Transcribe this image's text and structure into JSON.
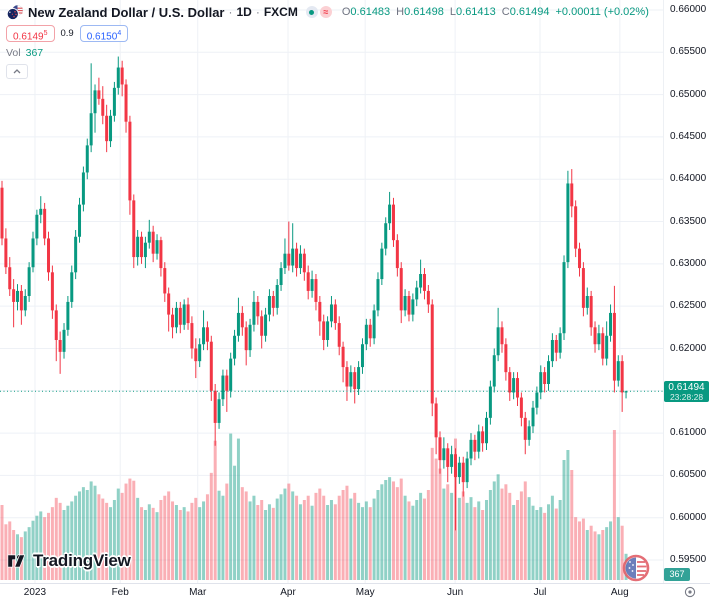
{
  "header": {
    "symbol_title": "New Zealand Dollar / U.S. Dollar",
    "separator": "·",
    "interval": "1D",
    "exchange": "FXCM",
    "ohlc": {
      "open_label": "O",
      "open": "0.61483",
      "high_label": "H",
      "high": "0.61498",
      "low_label": "L",
      "low": "0.61413",
      "close_label": "C",
      "close": "0.61494",
      "change": "+0.00011 (+0.02%)"
    },
    "sell": {
      "main": "0.6149",
      "sup": "5"
    },
    "spread": "0.9",
    "buy": {
      "main": "0.6150",
      "sup": "4"
    },
    "indicator": {
      "label": "Vol",
      "value": "367"
    }
  },
  "icons": {
    "delayed_glyph": "≈"
  },
  "watermark": {
    "brand": "TradingView"
  },
  "price_axis": {
    "current": {
      "price": "0.61494",
      "countdown": "23:28:28"
    },
    "volume_label": "367"
  },
  "chart_data": {
    "type": "candlestick",
    "symbol": "NZDUSD",
    "timeframe": "1D",
    "title": "New Zealand Dollar / U.S. Dollar · 1D · FXCM",
    "last_price": 0.61494,
    "y_axis": {
      "tick_step": 0.005,
      "ylim": [
        0.5925,
        0.6612
      ],
      "tick_labels": [
        "0.66000",
        "0.65500",
        "0.65000",
        "0.64500",
        "0.64000",
        "0.63500",
        "0.63000",
        "0.62500",
        "0.62000",
        "0.61000",
        "0.60500",
        "0.60000",
        "0.59500"
      ]
    },
    "x_axis": {
      "unit": "trading-day",
      "month_ticks": [
        {
          "label": "2023",
          "index": 8.5
        },
        {
          "label": "Feb",
          "index": 30.5
        },
        {
          "label": "Mar",
          "index": 50.5
        },
        {
          "label": "Apr",
          "index": 73.8
        },
        {
          "label": "May",
          "index": 93.7
        },
        {
          "label": "Jun",
          "index": 116.9
        },
        {
          "label": "Jul",
          "index": 138.8
        },
        {
          "label": "Aug",
          "index": 159.4
        }
      ]
    },
    "colors": {
      "up": "#089981",
      "down": "#f23645",
      "volume_up": "rgba(8,153,129,0.45)",
      "volume_down": "rgba(242,54,69,0.40)",
      "grid": "#eef1f6",
      "last_price_line": "#089981"
    },
    "candles": [
      [
        0.639,
        0.6398,
        0.6322,
        0.633
      ],
      [
        0.633,
        0.6342,
        0.6288,
        0.6296
      ],
      [
        0.6296,
        0.6308,
        0.6262,
        0.627
      ],
      [
        0.627,
        0.6282,
        0.6225,
        0.6255
      ],
      [
        0.6255,
        0.6276,
        0.6245,
        0.6268
      ],
      [
        0.6268,
        0.6275,
        0.6228,
        0.6245
      ],
      [
        0.6245,
        0.627,
        0.6238,
        0.6262
      ],
      [
        0.6262,
        0.6302,
        0.6255,
        0.6296
      ],
      [
        0.6296,
        0.6338,
        0.629,
        0.633
      ],
      [
        0.633,
        0.6364,
        0.6322,
        0.6358
      ],
      [
        0.6358,
        0.638,
        0.6348,
        0.6365
      ],
      [
        0.6365,
        0.6372,
        0.6322,
        0.633
      ],
      [
        0.633,
        0.6338,
        0.628,
        0.629
      ],
      [
        0.629,
        0.6298,
        0.6235,
        0.6245
      ],
      [
        0.6245,
        0.6252,
        0.6185,
        0.621
      ],
      [
        0.621,
        0.622,
        0.617,
        0.6196
      ],
      [
        0.6196,
        0.623,
        0.6188,
        0.6222
      ],
      [
        0.6222,
        0.6262,
        0.6215,
        0.6255
      ],
      [
        0.6255,
        0.6298,
        0.6248,
        0.629
      ],
      [
        0.629,
        0.634,
        0.6282,
        0.6332
      ],
      [
        0.6332,
        0.6378,
        0.6325,
        0.637
      ],
      [
        0.637,
        0.6415,
        0.6362,
        0.6408
      ],
      [
        0.6408,
        0.6448,
        0.64,
        0.644
      ],
      [
        0.644,
        0.6537,
        0.6432,
        0.6478
      ],
      [
        0.6478,
        0.6512,
        0.6455,
        0.6505
      ],
      [
        0.6505,
        0.652,
        0.6488,
        0.6495
      ],
      [
        0.6495,
        0.651,
        0.6465,
        0.6475
      ],
      [
        0.6475,
        0.6488,
        0.6432,
        0.6445
      ],
      [
        0.6445,
        0.6482,
        0.6438,
        0.6475
      ],
      [
        0.6475,
        0.6515,
        0.6468,
        0.6508
      ],
      [
        0.6508,
        0.6545,
        0.65,
        0.6532
      ],
      [
        0.6532,
        0.654,
        0.6498,
        0.6512
      ],
      [
        0.6512,
        0.6518,
        0.6455,
        0.6468
      ],
      [
        0.6468,
        0.6475,
        0.6358,
        0.6375
      ],
      [
        0.6375,
        0.6382,
        0.6295,
        0.6308
      ],
      [
        0.6308,
        0.634,
        0.6298,
        0.6332
      ],
      [
        0.6332,
        0.6338,
        0.63,
        0.6308
      ],
      [
        0.6308,
        0.6332,
        0.6295,
        0.6325
      ],
      [
        0.6325,
        0.6352,
        0.6318,
        0.6338
      ],
      [
        0.6338,
        0.6345,
        0.6302,
        0.6312
      ],
      [
        0.6312,
        0.6335,
        0.6305,
        0.6328
      ],
      [
        0.6328,
        0.6332,
        0.6285,
        0.6295
      ],
      [
        0.6295,
        0.6302,
        0.6255,
        0.6265
      ],
      [
        0.6265,
        0.6272,
        0.622,
        0.624
      ],
      [
        0.624,
        0.6248,
        0.6212,
        0.6225
      ],
      [
        0.6225,
        0.6255,
        0.6218,
        0.6248
      ],
      [
        0.6248,
        0.6255,
        0.6218,
        0.6228
      ],
      [
        0.6228,
        0.6258,
        0.6222,
        0.6252
      ],
      [
        0.6252,
        0.626,
        0.6222,
        0.623
      ],
      [
        0.623,
        0.6238,
        0.6188,
        0.62
      ],
      [
        0.62,
        0.6212,
        0.6165,
        0.6185
      ],
      [
        0.6185,
        0.6212,
        0.6178,
        0.6205
      ],
      [
        0.6205,
        0.6245,
        0.6198,
        0.6225
      ],
      [
        0.6225,
        0.6232,
        0.6198,
        0.6208
      ],
      [
        0.6208,
        0.6215,
        0.6138,
        0.615
      ],
      [
        0.615,
        0.6158,
        0.6085,
        0.6112
      ],
      [
        0.6112,
        0.6148,
        0.6105,
        0.614
      ],
      [
        0.614,
        0.6175,
        0.6132,
        0.6168
      ],
      [
        0.6168,
        0.6175,
        0.6125,
        0.615
      ],
      [
        0.615,
        0.6195,
        0.6142,
        0.6188
      ],
      [
        0.6188,
        0.6222,
        0.618,
        0.6215
      ],
      [
        0.6215,
        0.626,
        0.6208,
        0.6242
      ],
      [
        0.6242,
        0.625,
        0.6215,
        0.6225
      ],
      [
        0.6225,
        0.6232,
        0.618,
        0.6198
      ],
      [
        0.6198,
        0.6235,
        0.619,
        0.6228
      ],
      [
        0.6228,
        0.6268,
        0.622,
        0.6255
      ],
      [
        0.6255,
        0.6262,
        0.6228,
        0.6238
      ],
      [
        0.6238,
        0.6245,
        0.62,
        0.6215
      ],
      [
        0.6215,
        0.6248,
        0.6208,
        0.624
      ],
      [
        0.624,
        0.627,
        0.6232,
        0.6262
      ],
      [
        0.6262,
        0.6268,
        0.6238,
        0.6248
      ],
      [
        0.6248,
        0.6282,
        0.624,
        0.6275
      ],
      [
        0.6275,
        0.6302,
        0.6268,
        0.6295
      ],
      [
        0.6295,
        0.633,
        0.6288,
        0.6312
      ],
      [
        0.6312,
        0.635,
        0.6292,
        0.6298
      ],
      [
        0.6298,
        0.6348,
        0.629,
        0.6318
      ],
      [
        0.6318,
        0.6325,
        0.6285,
        0.6295
      ],
      [
        0.6295,
        0.6322,
        0.6288,
        0.6312
      ],
      [
        0.6312,
        0.6318,
        0.628,
        0.629
      ],
      [
        0.629,
        0.6298,
        0.6258,
        0.6268
      ],
      [
        0.6268,
        0.6292,
        0.626,
        0.6282
      ],
      [
        0.6282,
        0.6288,
        0.6245,
        0.6255
      ],
      [
        0.6255,
        0.6262,
        0.6215,
        0.6232
      ],
      [
        0.6232,
        0.624,
        0.6198,
        0.621
      ],
      [
        0.621,
        0.6238,
        0.6202,
        0.6232
      ],
      [
        0.6232,
        0.6262,
        0.6225,
        0.6252
      ],
      [
        0.6252,
        0.6258,
        0.6222,
        0.623
      ],
      [
        0.623,
        0.6238,
        0.6192,
        0.6202
      ],
      [
        0.6202,
        0.6208,
        0.616,
        0.6178
      ],
      [
        0.6178,
        0.6185,
        0.6138,
        0.6155
      ],
      [
        0.6155,
        0.618,
        0.6148,
        0.6172
      ],
      [
        0.6172,
        0.6178,
        0.6135,
        0.6152
      ],
      [
        0.6152,
        0.6185,
        0.6145,
        0.6178
      ],
      [
        0.6178,
        0.6212,
        0.617,
        0.6205
      ],
      [
        0.6205,
        0.6235,
        0.6198,
        0.6228
      ],
      [
        0.6228,
        0.6235,
        0.6202,
        0.6212
      ],
      [
        0.6212,
        0.6252,
        0.6205,
        0.6245
      ],
      [
        0.6245,
        0.629,
        0.6238,
        0.6282
      ],
      [
        0.6282,
        0.6325,
        0.6275,
        0.6318
      ],
      [
        0.6318,
        0.6355,
        0.631,
        0.6348
      ],
      [
        0.6348,
        0.6385,
        0.634,
        0.637
      ],
      [
        0.637,
        0.6378,
        0.632,
        0.6328
      ],
      [
        0.6328,
        0.6335,
        0.6285,
        0.6295
      ],
      [
        0.6295,
        0.6302,
        0.623,
        0.6245
      ],
      [
        0.6245,
        0.627,
        0.6238,
        0.6262
      ],
      [
        0.6262,
        0.6268,
        0.6232,
        0.624
      ],
      [
        0.624,
        0.6265,
        0.6232,
        0.6258
      ],
      [
        0.6258,
        0.628,
        0.625,
        0.6272
      ],
      [
        0.6272,
        0.6305,
        0.6265,
        0.6288
      ],
      [
        0.6288,
        0.6295,
        0.6258,
        0.6268
      ],
      [
        0.6268,
        0.6275,
        0.6242,
        0.6252
      ],
      [
        0.6252,
        0.6258,
        0.612,
        0.6135
      ],
      [
        0.6135,
        0.6142,
        0.6075,
        0.6095
      ],
      [
        0.6095,
        0.6102,
        0.6052,
        0.6068
      ],
      [
        0.6068,
        0.6095,
        0.6058,
        0.6082
      ],
      [
        0.6082,
        0.6088,
        0.6042,
        0.606
      ],
      [
        0.606,
        0.6085,
        0.6052,
        0.6075
      ],
      [
        0.6075,
        0.6082,
        0.5985,
        0.6048
      ],
      [
        0.6048,
        0.6072,
        0.604,
        0.6065
      ],
      [
        0.6065,
        0.6072,
        0.6025,
        0.6042
      ],
      [
        0.6042,
        0.6078,
        0.6035,
        0.607
      ],
      [
        0.607,
        0.61,
        0.6062,
        0.6092
      ],
      [
        0.6092,
        0.6098,
        0.6068,
        0.6078
      ],
      [
        0.6078,
        0.611,
        0.607,
        0.6102
      ],
      [
        0.6102,
        0.6108,
        0.6078,
        0.6088
      ],
      [
        0.6088,
        0.6125,
        0.608,
        0.6118
      ],
      [
        0.6118,
        0.6162,
        0.611,
        0.6155
      ],
      [
        0.6155,
        0.62,
        0.6148,
        0.6192
      ],
      [
        0.6192,
        0.6248,
        0.6185,
        0.6225
      ],
      [
        0.6225,
        0.6232,
        0.6195,
        0.6205
      ],
      [
        0.6205,
        0.6212,
        0.6162,
        0.6172
      ],
      [
        0.6172,
        0.6178,
        0.6138,
        0.6148
      ],
      [
        0.6148,
        0.6172,
        0.614,
        0.6165
      ],
      [
        0.6165,
        0.6172,
        0.6132,
        0.6142
      ],
      [
        0.6142,
        0.6148,
        0.6108,
        0.6118
      ],
      [
        0.6118,
        0.6125,
        0.6075,
        0.6092
      ],
      [
        0.6092,
        0.6115,
        0.6085,
        0.6108
      ],
      [
        0.6108,
        0.6138,
        0.61,
        0.613
      ],
      [
        0.613,
        0.6155,
        0.6122,
        0.6148
      ],
      [
        0.6148,
        0.618,
        0.614,
        0.6172
      ],
      [
        0.6172,
        0.6178,
        0.6148,
        0.6158
      ],
      [
        0.6158,
        0.6192,
        0.615,
        0.6185
      ],
      [
        0.6185,
        0.6218,
        0.6178,
        0.621
      ],
      [
        0.621,
        0.6216,
        0.6185,
        0.6195
      ],
      [
        0.6195,
        0.6225,
        0.6188,
        0.6218
      ],
      [
        0.6218,
        0.631,
        0.621,
        0.6302
      ],
      [
        0.6302,
        0.641,
        0.6295,
        0.6395
      ],
      [
        0.6395,
        0.6412,
        0.6355,
        0.6368
      ],
      [
        0.6368,
        0.6375,
        0.6308,
        0.6318
      ],
      [
        0.6318,
        0.6325,
        0.6285,
        0.6295
      ],
      [
        0.6295,
        0.6302,
        0.6238,
        0.6248
      ],
      [
        0.6248,
        0.6272,
        0.624,
        0.6262
      ],
      [
        0.6262,
        0.6268,
        0.6215,
        0.6225
      ],
      [
        0.6225,
        0.6232,
        0.6195,
        0.6205
      ],
      [
        0.6205,
        0.6228,
        0.6198,
        0.6218
      ],
      [
        0.6218,
        0.6225,
        0.618,
        0.6188
      ],
      [
        0.6188,
        0.6232,
        0.618,
        0.6215
      ],
      [
        0.6215,
        0.6252,
        0.6208,
        0.6242
      ],
      [
        0.6242,
        0.6274,
        0.6148,
        0.6162
      ],
      [
        0.6162,
        0.6192,
        0.6155,
        0.6185
      ],
      [
        0.6185,
        0.6192,
        0.6125,
        0.6148
      ],
      [
        0.6148,
        0.615,
        0.6141,
        0.61494
      ]
    ],
    "volumes": [
      1050,
      780,
      820,
      700,
      640,
      600,
      680,
      740,
      830,
      900,
      960,
      880,
      940,
      1020,
      1150,
      1080,
      980,
      1040,
      1100,
      1180,
      1240,
      1300,
      1260,
      1380,
      1320,
      1200,
      1140,
      1080,
      1020,
      1120,
      1280,
      1220,
      1350,
      1420,
      1390,
      1150,
      1020,
      980,
      1060,
      1010,
      950,
      1120,
      1180,
      1240,
      1100,
      1050,
      980,
      1020,
      960,
      1080,
      1150,
      1020,
      1100,
      1200,
      1500,
      1950,
      1250,
      1180,
      1350,
      2050,
      1600,
      1980,
      1300,
      1240,
      1100,
      1180,
      1050,
      1120,
      980,
      1060,
      1010,
      1140,
      1200,
      1280,
      1350,
      1240,
      1180,
      1060,
      1120,
      1180,
      1040,
      1220,
      1280,
      1180,
      1050,
      1120,
      1060,
      1180,
      1260,
      1320,
      1140,
      1220,
      1080,
      1020,
      1100,
      1020,
      1140,
      1260,
      1340,
      1400,
      1440,
      1380,
      1300,
      1420,
      1180,
      1100,
      1040,
      1120,
      1220,
      1140,
      1260,
      1850,
      1700,
      1560,
      1280,
      1340,
      1220,
      1980,
      1150,
      1240,
      1080,
      1160,
      1020,
      1100,
      980,
      1120,
      1260,
      1380,
      1480,
      1280,
      1340,
      1220,
      1050,
      1120,
      1240,
      1380,
      1160,
      1040,
      980,
      1020,
      940,
      1060,
      1180,
      1000,
      1120,
      1680,
      1820,
      1540,
      880,
      820,
      860,
      700,
      760,
      680,
      640,
      700,
      740,
      820,
      2100,
      880,
      760,
      367
    ],
    "last_volume": 367
  }
}
